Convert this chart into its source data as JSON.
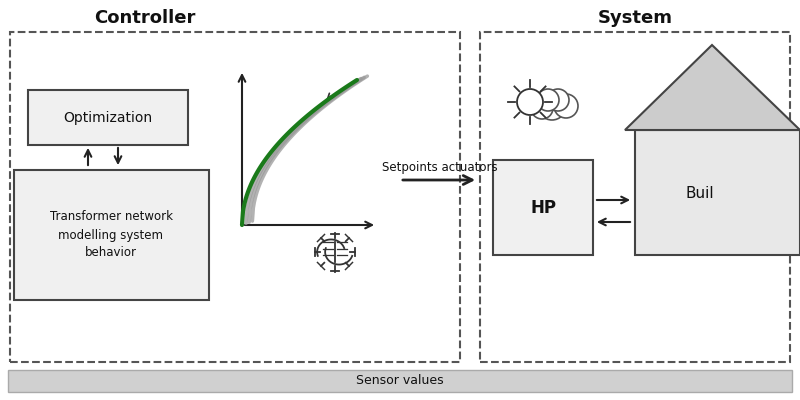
{
  "bg_color": "#ffffff",
  "controller_label": "Controller",
  "system_label": "System",
  "optimization_label": "Optimization",
  "transformer_label": "Transformer network\nmodelling system\nbehavior",
  "hp_label": "HP",
  "building_label": "Buil",
  "setpoints_label": "Setpoints actuators",
  "sensor_label": "Sensor values",
  "arrow_color": "#222222",
  "text_color": "#111111",
  "green_color": "#1a7a1a",
  "gray_curve_color": "#888888",
  "box_face": "#f0f0f0",
  "box_edge": "#444444",
  "dash_color": "#555555",
  "bottom_bar_face": "#d0d0d0",
  "bottom_bar_edge": "#aaaaaa",
  "brain_color": "#333333",
  "sun_color": "#333333",
  "cloud_color": "#dddddd",
  "building_roof_color": "#cccccc",
  "building_wall_color": "#e8e8e8"
}
